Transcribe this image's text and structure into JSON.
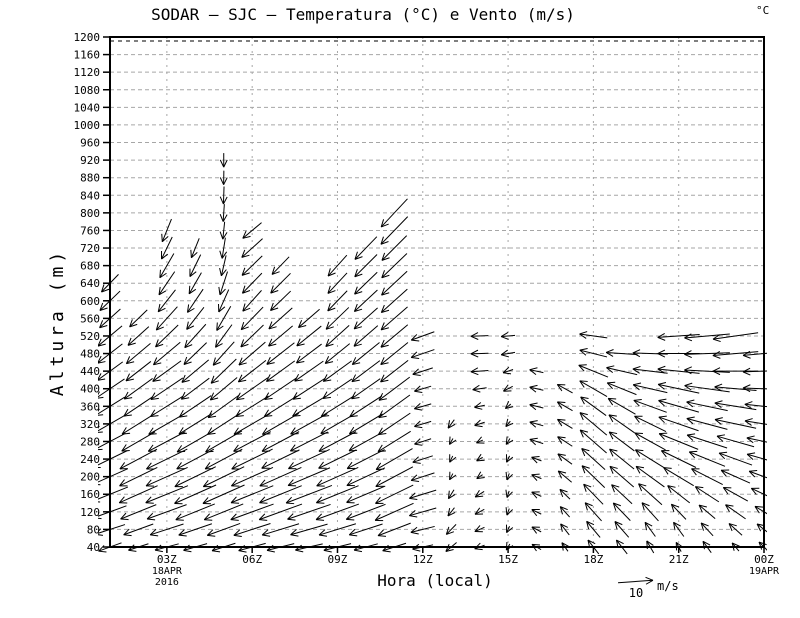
{
  "chart_data": {
    "type": "vector",
    "title": "SODAR – SJC – Temperatura (°C) e Vento (m/s)",
    "units_label": "°C",
    "xlabel": "Hora (local)",
    "ylabel": "Altura (m)",
    "grid": "dashed",
    "grid_color": "#a6a6a6",
    "arrow_color": "#000000",
    "ylim": [
      40,
      1200
    ],
    "y_tick_step": 40,
    "y_ticks": [
      1200,
      1160,
      1120,
      1080,
      1040,
      1000,
      960,
      920,
      880,
      840,
      800,
      760,
      720,
      680,
      640,
      600,
      560,
      520,
      480,
      440,
      400,
      360,
      320,
      280,
      240,
      200,
      160,
      120,
      80,
      40
    ],
    "x_axis": {
      "start_hour": 1,
      "end_hour": 24,
      "tick_interval_hours": 3
    },
    "x_ticks": [
      {
        "hour": 3,
        "label": "03Z",
        "sub": [
          "18APR",
          "2016"
        ]
      },
      {
        "hour": 6,
        "label": "06Z",
        "sub": []
      },
      {
        "hour": 9,
        "label": "09Z",
        "sub": []
      },
      {
        "hour": 12,
        "label": "12Z",
        "sub": []
      },
      {
        "hour": 15,
        "label": "15Z",
        "sub": []
      },
      {
        "hour": 18,
        "label": "18Z",
        "sub": []
      },
      {
        "hour": 21,
        "label": "21Z",
        "sub": []
      },
      {
        "hour": 24,
        "label": "00Z",
        "sub": [
          "19APR"
        ]
      }
    ],
    "reference_vector": {
      "value_label": "10",
      "units": "m/s",
      "speed_ms": 10
    },
    "profiles": [
      {
        "hour": 1,
        "base_height": 40,
        "height_step": 40,
        "dir_toward_deg": [
          250,
          252,
          250,
          248,
          246,
          244,
          242,
          240,
          238,
          236,
          234,
          232,
          230,
          228,
          226,
          224
        ],
        "speed_ms": [
          7,
          9,
          10,
          11,
          11,
          11,
          10,
          10,
          10,
          10,
          9,
          9,
          9,
          8,
          8,
          7
        ]
      },
      {
        "hour": 2,
        "base_height": 40,
        "height_step": 40,
        "dir_toward_deg": [
          252,
          250,
          248,
          246,
          244,
          242,
          240,
          238,
          236,
          234,
          232,
          230,
          228,
          226
        ],
        "speed_ms": [
          6,
          9,
          11,
          12,
          12,
          12,
          11,
          11,
          10,
          10,
          9,
          9,
          8,
          7
        ]
      },
      {
        "hour": 3,
        "base_height": 40,
        "height_step": 40,
        "dir_toward_deg": [
          255,
          252,
          250,
          248,
          246,
          244,
          242,
          240,
          238,
          236,
          234,
          230,
          226,
          222,
          218,
          214,
          210,
          206,
          202
        ],
        "speed_ms": [
          7,
          10,
          12,
          13,
          13,
          13,
          12,
          12,
          11,
          11,
          10,
          10,
          9,
          9,
          8,
          8,
          8,
          7,
          7
        ]
      },
      {
        "hour": 4,
        "base_height": 40,
        "height_step": 40,
        "dir_toward_deg": [
          254,
          251,
          248,
          246,
          244,
          242,
          240,
          238,
          236,
          233,
          230,
          226,
          222,
          218,
          214,
          210,
          206,
          202
        ],
        "speed_ms": [
          7,
          10,
          12,
          13,
          13,
          12,
          12,
          11,
          11,
          10,
          10,
          9,
          9,
          8,
          8,
          7,
          7,
          6
        ]
      },
      {
        "hour": 5,
        "base_height": 40,
        "height_step": 40,
        "dir_toward_deg": [
          252,
          250,
          248,
          246,
          244,
          242,
          240,
          237,
          234,
          230,
          226,
          222,
          216,
          210,
          204,
          198,
          193,
          189,
          186,
          184,
          182,
          181,
          180
        ],
        "speed_ms": [
          7,
          10,
          12,
          13,
          13,
          12,
          12,
          11,
          11,
          10,
          10,
          9,
          8,
          8,
          7,
          7,
          6,
          6,
          5,
          5,
          5,
          4,
          4
        ]
      },
      {
        "hour": 6,
        "base_height": 40,
        "height_step": 40,
        "dir_toward_deg": [
          255,
          252,
          250,
          248,
          246,
          244,
          242,
          240,
          238,
          235,
          232,
          229,
          226,
          224,
          222,
          224,
          226,
          228,
          230
        ],
        "speed_ms": [
          8,
          11,
          13,
          13,
          13,
          13,
          12,
          12,
          11,
          11,
          10,
          10,
          9,
          9,
          8,
          8,
          8,
          8,
          7
        ]
      },
      {
        "hour": 7,
        "base_height": 40,
        "height_step": 40,
        "dir_toward_deg": [
          256,
          253,
          250,
          248,
          246,
          244,
          242,
          240,
          238,
          236,
          234,
          232,
          230,
          228,
          226,
          225,
          224
        ],
        "speed_ms": [
          8,
          11,
          13,
          13,
          13,
          12,
          12,
          12,
          11,
          11,
          10,
          10,
          9,
          9,
          8,
          8,
          7
        ]
      },
      {
        "hour": 8,
        "base_height": 40,
        "height_step": 40,
        "dir_toward_deg": [
          257,
          254,
          251,
          249,
          247,
          245,
          243,
          241,
          239,
          237,
          235,
          233,
          231,
          229
        ],
        "speed_ms": [
          8,
          11,
          13,
          14,
          13,
          13,
          12,
          12,
          11,
          11,
          10,
          9,
          9,
          8
        ]
      },
      {
        "hour": 9,
        "base_height": 40,
        "height_step": 40,
        "dir_toward_deg": [
          256,
          253,
          250,
          248,
          246,
          244,
          242,
          240,
          238,
          236,
          234,
          231,
          228,
          226,
          224,
          223,
          222
        ],
        "speed_ms": [
          8,
          11,
          13,
          13,
          13,
          12,
          12,
          11,
          11,
          10,
          10,
          9,
          9,
          9,
          8,
          8,
          8
        ]
      },
      {
        "hour": 10,
        "base_height": 40,
        "height_step": 40,
        "dir_toward_deg": [
          255,
          252,
          249,
          247,
          245,
          243,
          241,
          239,
          237,
          235,
          233,
          231,
          229,
          228,
          227,
          226,
          225,
          224
        ],
        "speed_ms": [
          7,
          10,
          12,
          12,
          12,
          12,
          11,
          11,
          11,
          10,
          10,
          10,
          9,
          9,
          9,
          9,
          9,
          9
        ]
      },
      {
        "hour": 11,
        "base_height": 40,
        "height_step": 40,
        "dir_toward_deg": [
          252,
          249,
          246,
          244,
          242,
          240,
          238,
          236,
          234,
          233,
          232,
          231,
          230,
          229,
          228,
          227,
          226,
          225,
          224,
          223
        ],
        "speed_ms": [
          7,
          10,
          12,
          12,
          12,
          12,
          11,
          11,
          11,
          11,
          10,
          10,
          10,
          10,
          10,
          10,
          10,
          10,
          11,
          11
        ]
      },
      {
        "hour": 12,
        "base_height": 40,
        "height_step": 40,
        "dir_toward_deg": [
          258,
          256,
          254,
          253,
          252,
          252,
          252,
          253,
          254,
          253,
          252,
          251,
          250
        ],
        "speed_ms": [
          6,
          7,
          8,
          8,
          7,
          6,
          5,
          5,
          5,
          5,
          6,
          7,
          7
        ]
      },
      {
        "hour": 13,
        "base_height": 40,
        "height_step": 40,
        "dir_toward_deg": [
          230,
          224,
          218,
          212,
          208,
          206,
          210,
          216
        ],
        "speed_ms": [
          4,
          4,
          3,
          3,
          2,
          2,
          2,
          3
        ]
      },
      {
        "hour": 14,
        "base_height": 40,
        "height_step": 40,
        "dir_toward_deg": [
          250,
          246,
          242,
          238,
          236,
          240,
          246,
          252,
          258,
          262,
          266,
          268,
          268
        ],
        "speed_ms": [
          3,
          3,
          3,
          3,
          2,
          2,
          2,
          3,
          3,
          4,
          5,
          5,
          5
        ]
      },
      {
        "hour": 15,
        "base_height": 40,
        "height_step": 40,
        "dir_toward_deg": [
          210,
          205,
          200,
          198,
          200,
          205,
          212,
          220,
          230,
          242,
          252,
          260,
          265
        ],
        "speed_ms": [
          2,
          2,
          2,
          2,
          2,
          2,
          2,
          2,
          2,
          3,
          3,
          4,
          4
        ]
      },
      {
        "hour": 16,
        "base_height": 40,
        "height_step": 40,
        "dir_toward_deg": [
          300,
          298,
          296,
          294,
          292,
          290,
          288,
          286,
          284,
          283,
          282
        ],
        "speed_ms": [
          3,
          3,
          3,
          3,
          3,
          3,
          4,
          4,
          4,
          4,
          4
        ]
      },
      {
        "hour": 17,
        "base_height": 40,
        "height_step": 40,
        "dir_toward_deg": [
          325,
          322,
          318,
          314,
          310,
          306,
          303,
          301,
          300,
          299
        ],
        "speed_ms": [
          3,
          4,
          4,
          4,
          5,
          5,
          5,
          5,
          5,
          5
        ]
      },
      {
        "hour": 18,
        "base_height": 40,
        "height_step": 40,
        "dir_toward_deg": [
          322,
          320,
          318,
          316,
          314,
          312,
          311,
          310,
          306,
          300,
          292,
          284,
          278
        ],
        "speed_ms": [
          5,
          6,
          7,
          8,
          9,
          9,
          10,
          10,
          9,
          9,
          9,
          8,
          8
        ]
      },
      {
        "hour": 19,
        "base_height": 40,
        "height_step": 40,
        "dir_toward_deg": [
          322,
          319,
          316,
          313,
          311,
          309,
          307,
          305,
          300,
          292,
          283,
          274
        ],
        "speed_ms": [
          5,
          6,
          7,
          8,
          9,
          9,
          9,
          9,
          9,
          9,
          9,
          9
        ]
      },
      {
        "hour": 20,
        "base_height": 40,
        "height_step": 40,
        "dir_toward_deg": [
          330,
          324,
          318,
          312,
          306,
          302,
          299,
          296,
          290,
          283,
          277,
          272
        ],
        "speed_ms": [
          4,
          5,
          7,
          9,
          10,
          10,
          10,
          10,
          10,
          10,
          10,
          10
        ]
      },
      {
        "hour": 21,
        "base_height": 40,
        "height_step": 40,
        "dir_toward_deg": [
          332,
          324,
          316,
          308,
          301,
          296,
          292,
          289,
          286,
          282,
          276,
          270,
          266
        ],
        "speed_ms": [
          3,
          5,
          6,
          8,
          10,
          11,
          12,
          12,
          12,
          12,
          12,
          12,
          12
        ]
      },
      {
        "hour": 22,
        "base_height": 40,
        "height_step": 40,
        "dir_toward_deg": [
          324,
          317,
          310,
          303,
          297,
          292,
          288,
          285,
          282,
          278,
          273,
          268,
          265
        ],
        "speed_ms": [
          4,
          5,
          6,
          8,
          10,
          11,
          12,
          12,
          12,
          13,
          13,
          13,
          13
        ]
      },
      {
        "hour": 23,
        "base_height": 40,
        "height_step": 40,
        "dir_toward_deg": [
          320,
          312,
          305,
          299,
          294,
          290,
          286,
          282,
          279,
          275,
          270,
          265,
          262
        ],
        "speed_ms": [
          3,
          5,
          7,
          8,
          9,
          10,
          11,
          12,
          12,
          12,
          13,
          13,
          13
        ]
      },
      {
        "hour": 24,
        "base_height": 40,
        "height_step": 40,
        "dir_toward_deg": [
          315,
          308,
          301,
          295,
          290,
          286,
          282,
          279,
          276,
          272,
          268,
          265
        ],
        "speed_ms": [
          4,
          5,
          6,
          8,
          9,
          10,
          10,
          11,
          11,
          12,
          12,
          12
        ]
      }
    ]
  }
}
